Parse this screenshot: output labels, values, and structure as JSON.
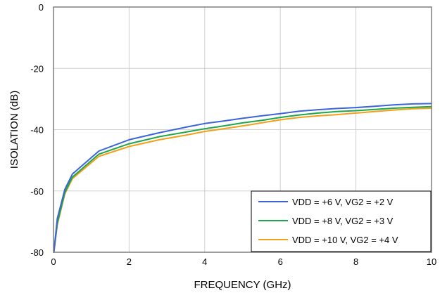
{
  "chart_data": {
    "type": "line",
    "title": "",
    "xlabel": "FREQUENCY (GHz)",
    "ylabel": "ISOLATION (dB)",
    "xlim": [
      0,
      10
    ],
    "ylim": [
      -80,
      0
    ],
    "xticks": [
      0,
      2,
      4,
      6,
      8,
      10
    ],
    "yticks": [
      0,
      -20,
      -40,
      -60,
      -80
    ],
    "grid": true,
    "legend_position": "bottom-right",
    "series": [
      {
        "name": "VDD = +6 V, VG2 = +2 V",
        "color": "#3b64d8",
        "x": [
          0.01,
          0.1,
          0.3,
          0.5,
          1.2,
          2,
          2.8,
          3.5,
          4,
          4.5,
          5,
          5.5,
          6,
          6.5,
          7,
          7.5,
          8,
          8.5,
          9,
          9.5,
          10
        ],
        "y": [
          -80,
          -69,
          -59.5,
          -54.5,
          -47,
          -43.3,
          -41,
          -39.2,
          -38,
          -37.2,
          -36.3,
          -35.5,
          -34.8,
          -34,
          -33.5,
          -33.1,
          -32.8,
          -32.4,
          -31.9,
          -31.6,
          -31.5
        ]
      },
      {
        "name": "VDD = +8 V, VG2 = +3 V",
        "color": "#1ea64a",
        "x": [
          0.01,
          0.1,
          0.3,
          0.5,
          1.2,
          2,
          2.8,
          3.5,
          4,
          4.5,
          5,
          5.5,
          6,
          6.5,
          7,
          7.5,
          8,
          8.5,
          9,
          9.5,
          10
        ],
        "y": [
          -80,
          -70.5,
          -60.5,
          -55.5,
          -48,
          -44.6,
          -42.3,
          -40.8,
          -39.7,
          -38.8,
          -37.8,
          -37,
          -36,
          -35.2,
          -34.6,
          -34.1,
          -33.8,
          -33.4,
          -33,
          -32.7,
          -32.5
        ]
      },
      {
        "name": "VDD = +10 V, VG2 = +4 V",
        "color": "#f2a01c",
        "x": [
          0.01,
          0.1,
          0.3,
          0.5,
          1.2,
          2,
          2.8,
          3.5,
          4,
          4.5,
          5,
          5.5,
          6,
          6.5,
          7,
          7.5,
          8,
          8.5,
          9,
          9.5,
          10
        ],
        "y": [
          -80,
          -71,
          -61,
          -56,
          -48.7,
          -45.5,
          -43.3,
          -41.8,
          -40.6,
          -39.7,
          -38.8,
          -37.8,
          -36.8,
          -36,
          -35.5,
          -35.1,
          -34.6,
          -34.1,
          -33.6,
          -33.2,
          -33
        ]
      }
    ]
  }
}
